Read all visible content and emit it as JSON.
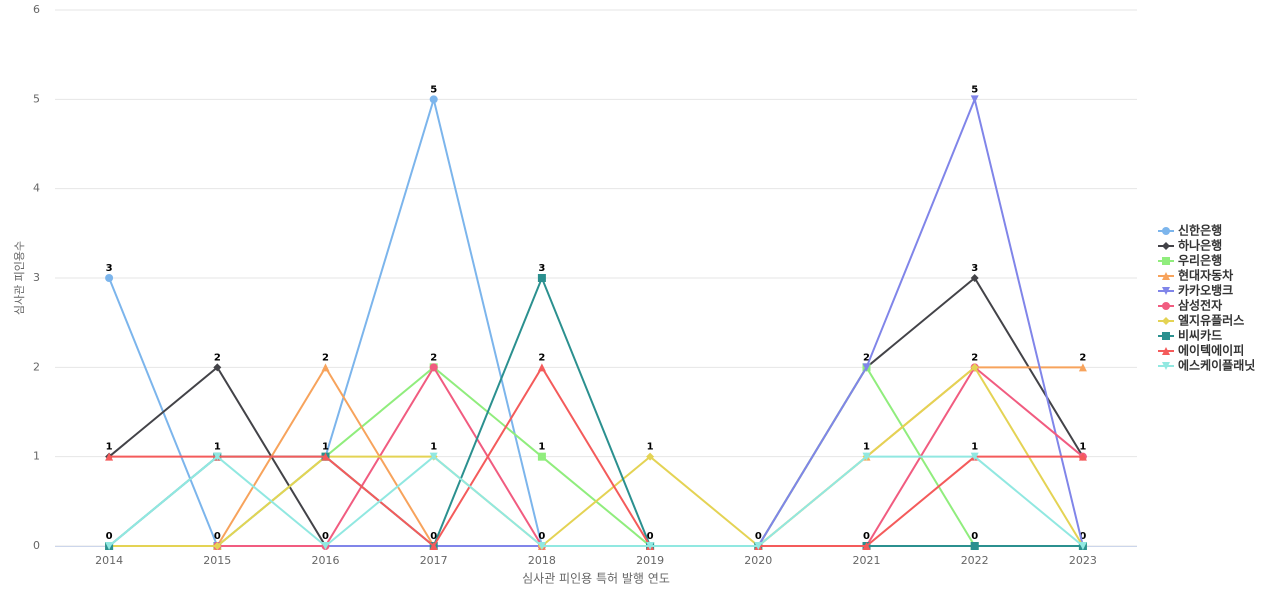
{
  "chart_data": {
    "type": "line",
    "x_label": "심사관 피인용 특허 발행 연도",
    "y_label": "심사관 피인용수",
    "categories": [
      "2014",
      "2015",
      "2016",
      "2017",
      "2018",
      "2019",
      "2020",
      "2021",
      "2022",
      "2023"
    ],
    "ylim": [
      0,
      6
    ],
    "yticks": [
      0,
      1,
      2,
      3,
      4,
      5,
      6
    ],
    "grid": true,
    "legend": "right",
    "series": [
      {
        "name": "신한은행",
        "color": "#7cb5ec",
        "marker": "circle",
        "values": [
          3,
          0,
          1,
          5,
          0,
          0,
          0,
          0,
          0,
          0
        ]
      },
      {
        "name": "하나은행",
        "color": "#434348",
        "marker": "diamond",
        "values": [
          1,
          2,
          0,
          0,
          0,
          0,
          0,
          2,
          3,
          1
        ]
      },
      {
        "name": "우리은행",
        "color": "#90ed7d",
        "marker": "square",
        "values": [
          0,
          0,
          1,
          2,
          1,
          0,
          0,
          2,
          0,
          0
        ]
      },
      {
        "name": "현대자동차",
        "color": "#f7a35c",
        "marker": "triangle",
        "values": [
          0,
          0,
          2,
          0,
          0,
          0,
          0,
          1,
          2,
          2
        ]
      },
      {
        "name": "카카오뱅크",
        "color": "#8085e9",
        "marker": "triangle-down",
        "values": [
          0,
          0,
          0,
          0,
          0,
          0,
          0,
          2,
          5,
          0
        ]
      },
      {
        "name": "삼성전자",
        "color": "#f15c80",
        "marker": "circle",
        "values": [
          0,
          0,
          0,
          2,
          0,
          0,
          0,
          0,
          2,
          1
        ]
      },
      {
        "name": "엘지유플러스",
        "color": "#e4d354",
        "marker": "diamond",
        "values": [
          0,
          0,
          1,
          1,
          0,
          1,
          0,
          1,
          2,
          0
        ]
      },
      {
        "name": "비씨카드",
        "color": "#2b908f",
        "marker": "square",
        "values": [
          0,
          1,
          1,
          0,
          3,
          0,
          0,
          0,
          0,
          0
        ]
      },
      {
        "name": "에이텍에이피",
        "color": "#f45b5b",
        "marker": "triangle",
        "values": [
          1,
          1,
          1,
          0,
          2,
          0,
          0,
          0,
          1,
          1
        ]
      },
      {
        "name": "에스케이플래닛",
        "color": "#91e8e1",
        "marker": "triangle-down",
        "values": [
          0,
          1,
          0,
          1,
          0,
          0,
          0,
          1,
          1,
          0
        ]
      }
    ]
  }
}
